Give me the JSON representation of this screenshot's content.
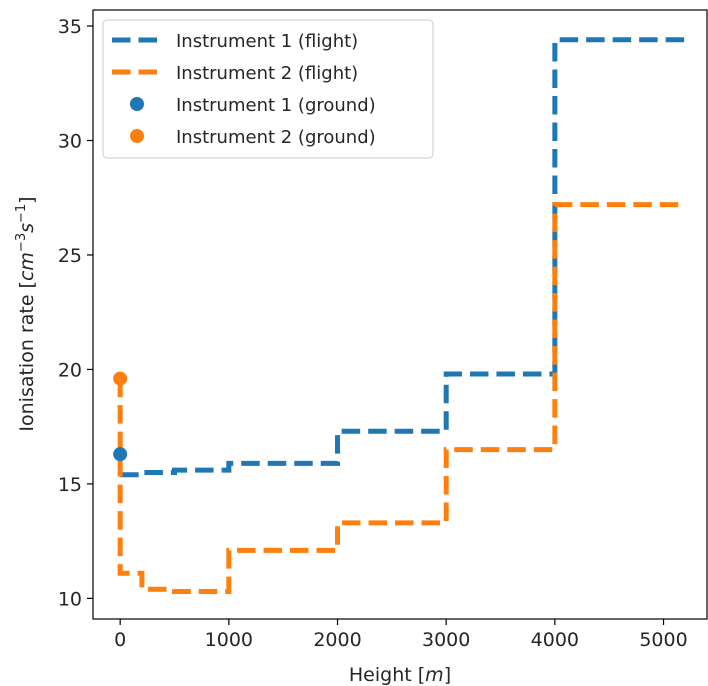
{
  "chart_data": {
    "type": "line",
    "xlabel_text": "Height ",
    "xlabel_unit": "m",
    "ylabel_text": "Ionisation rate ",
    "ylabel_unit": "cm",
    "ylabel_exp1": "−3",
    "ylabel_unit2": "s",
    "ylabel_exp2": "−1",
    "xlim": [
      -250,
      5400
    ],
    "ylim": [
      9.1,
      35.7
    ],
    "xticks": [
      0,
      1000,
      2000,
      3000,
      4000,
      5000
    ],
    "yticks": [
      10,
      15,
      20,
      25,
      30,
      35
    ],
    "legend_position": "upper-left",
    "grid": false,
    "series": [
      {
        "name": "Instrument 1 (flight)",
        "kind": "step-line",
        "style": "dashed",
        "color": "#1f77b4",
        "points": [
          [
            0,
            15.4
          ],
          [
            200,
            15.4
          ],
          [
            200,
            15.5
          ],
          [
            500,
            15.5
          ],
          [
            500,
            15.6
          ],
          [
            1000,
            15.6
          ],
          [
            1000,
            15.9
          ],
          [
            2000,
            15.9
          ],
          [
            2000,
            17.3
          ],
          [
            3000,
            17.3
          ],
          [
            3000,
            19.8
          ],
          [
            4000,
            19.8
          ],
          [
            4000,
            34.4
          ],
          [
            5200,
            34.4
          ]
        ]
      },
      {
        "name": "Instrument 2 (flight)",
        "kind": "step-line",
        "style": "dashed",
        "color": "#ff7f0e",
        "points": [
          [
            0,
            19.6
          ],
          [
            0,
            11.1
          ],
          [
            200,
            11.1
          ],
          [
            200,
            10.4
          ],
          [
            500,
            10.4
          ],
          [
            500,
            10.3
          ],
          [
            1000,
            10.3
          ],
          [
            1000,
            12.1
          ],
          [
            2000,
            12.1
          ],
          [
            2000,
            13.3
          ],
          [
            3000,
            13.3
          ],
          [
            3000,
            16.5
          ],
          [
            4000,
            16.5
          ],
          [
            4000,
            27.2
          ],
          [
            5200,
            27.2
          ]
        ]
      },
      {
        "name": "Instrument 1 (ground)",
        "kind": "scatter",
        "color": "#1f77b4",
        "points": [
          [
            0,
            16.3
          ]
        ]
      },
      {
        "name": "Instrument 2 (ground)",
        "kind": "scatter",
        "color": "#ff7f0e",
        "points": [
          [
            0,
            19.6
          ]
        ]
      }
    ]
  }
}
